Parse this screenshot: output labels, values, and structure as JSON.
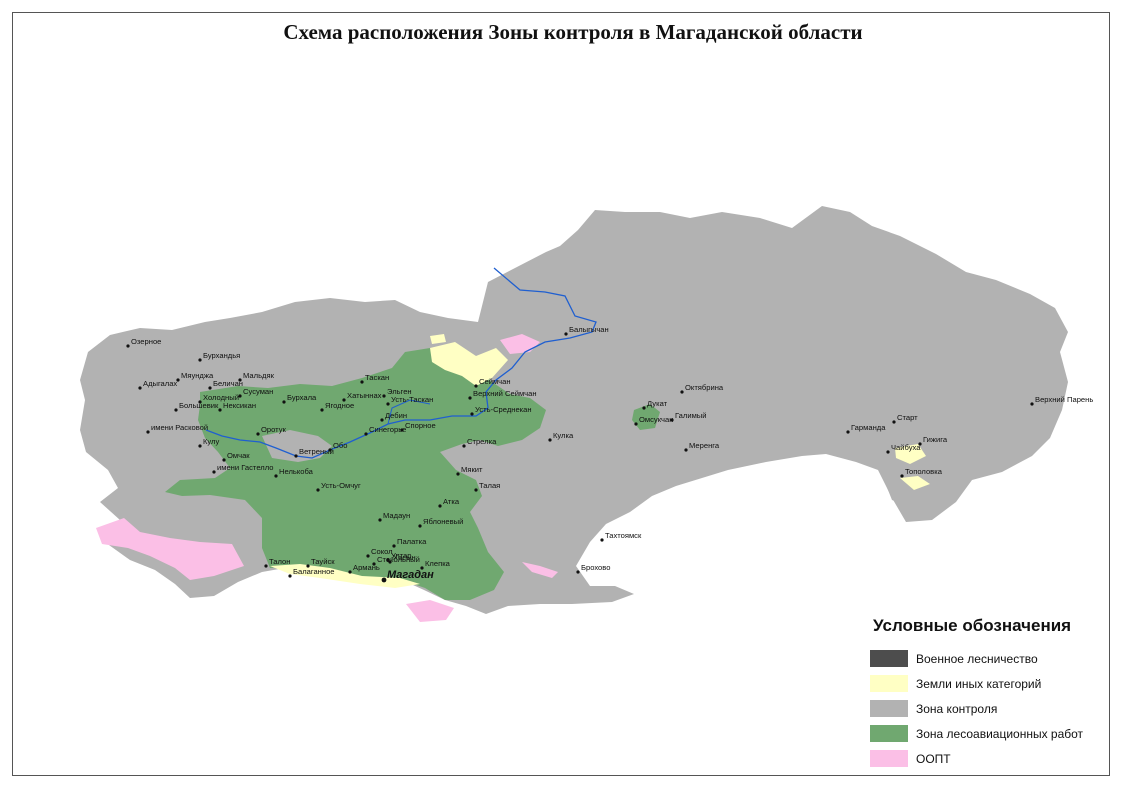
{
  "title": "Схема расположения Зоны контроля в Магаданской области",
  "legend": {
    "title": "Условные обозначения",
    "items": [
      {
        "label": "Военное лесничество",
        "color": "#4d4d4d"
      },
      {
        "label": "Земли иных категорий",
        "color": "#ffffc4"
      },
      {
        "label": "Зона контроля",
        "color": "#b2b2b2"
      },
      {
        "label": "Зона лесоавиационных работ",
        "color": "#70a870"
      },
      {
        "label": "ООПТ",
        "color": "#fbbfe6"
      }
    ]
  },
  "places": [
    {
      "name": "Озерное"
    },
    {
      "name": "Бурхандья"
    },
    {
      "name": "Мальдяк"
    },
    {
      "name": "Мяунджа"
    },
    {
      "name": "Адыгалах"
    },
    {
      "name": "Беличан"
    },
    {
      "name": "Сусуман"
    },
    {
      "name": "Холодный"
    },
    {
      "name": "Большевик"
    },
    {
      "name": "Нексикан"
    },
    {
      "name": "имени Расковой"
    },
    {
      "name": "Кулу"
    },
    {
      "name": "Оротук"
    },
    {
      "name": "Омчак"
    },
    {
      "name": "имени Гастелло"
    },
    {
      "name": "Нелькоба"
    },
    {
      "name": "Ветреный"
    },
    {
      "name": "Обо"
    },
    {
      "name": "Усть-Омчуг"
    },
    {
      "name": "Бурхала"
    },
    {
      "name": "Ягодное"
    },
    {
      "name": "Хатыннах"
    },
    {
      "name": "Таскан"
    },
    {
      "name": "Эльген"
    },
    {
      "name": "Усть-Таскан"
    },
    {
      "name": "Дебин"
    },
    {
      "name": "Спорное"
    },
    {
      "name": "Синегорье"
    },
    {
      "name": "Сеймчан"
    },
    {
      "name": "Верхний Сеймчан"
    },
    {
      "name": "Усть-Среднекан"
    },
    {
      "name": "Балыгычан"
    },
    {
      "name": "Стрелка"
    },
    {
      "name": "Кулка"
    },
    {
      "name": "Мякит"
    },
    {
      "name": "Талая"
    },
    {
      "name": "Атка"
    },
    {
      "name": "Мадаун"
    },
    {
      "name": "Уптар"
    },
    {
      "name": "Палатка"
    },
    {
      "name": "Сокол"
    },
    {
      "name": "Хасын"
    },
    {
      "name": "Стекольный"
    },
    {
      "name": "Клепка"
    },
    {
      "name": "Яблоневый"
    },
    {
      "name": "Талон"
    },
    {
      "name": "Тауйск"
    },
    {
      "name": "Балаганное"
    },
    {
      "name": "Армань"
    },
    {
      "name": "Магадан"
    },
    {
      "name": "Октябрина"
    },
    {
      "name": "Дукат"
    },
    {
      "name": "Омсукчан"
    },
    {
      "name": "Галимый"
    },
    {
      "name": "Меренга"
    },
    {
      "name": "Гарманда"
    },
    {
      "name": "Старт"
    },
    {
      "name": "Гижига"
    },
    {
      "name": "Чайбуха"
    },
    {
      "name": "Тополовка"
    },
    {
      "name": "Верхний Парень"
    },
    {
      "name": "Тахтоямск"
    },
    {
      "name": "Брохово"
    }
  ]
}
